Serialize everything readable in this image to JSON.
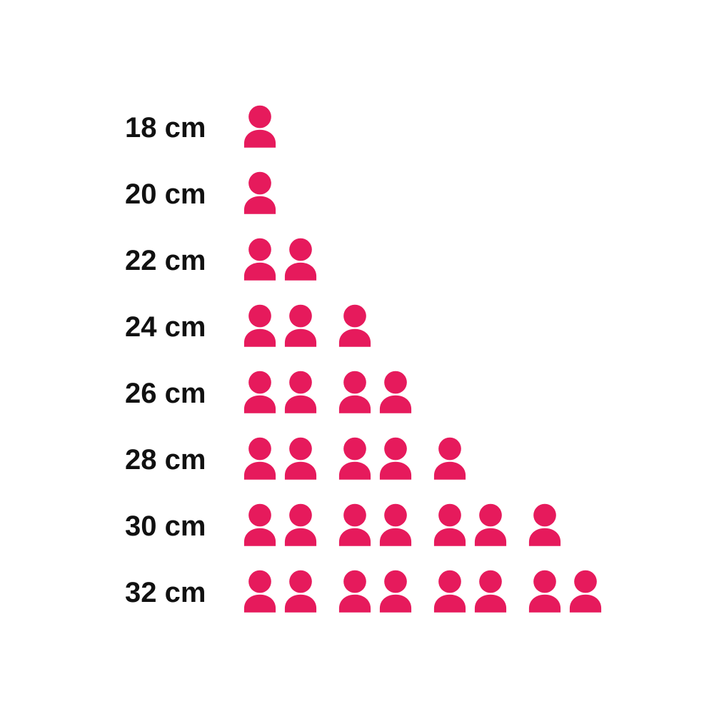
{
  "page": {
    "background": "#ffffff"
  },
  "chart_data": {
    "type": "bar",
    "variant": "pictogram-unit-chart",
    "orientation": "horizontal",
    "categories": [
      "18 cm",
      "20 cm",
      "22 cm",
      "24 cm",
      "26 cm",
      "28 cm",
      "30 cm",
      "32 cm"
    ],
    "values": [
      1,
      1,
      2,
      3,
      4,
      5,
      7,
      8
    ],
    "unit_icon": "person-icon",
    "icon_group_size": 2,
    "icon_color": "#E61A5C",
    "label_color": "#111111",
    "grid": false,
    "legend_position": "none",
    "axes_visible": false
  }
}
